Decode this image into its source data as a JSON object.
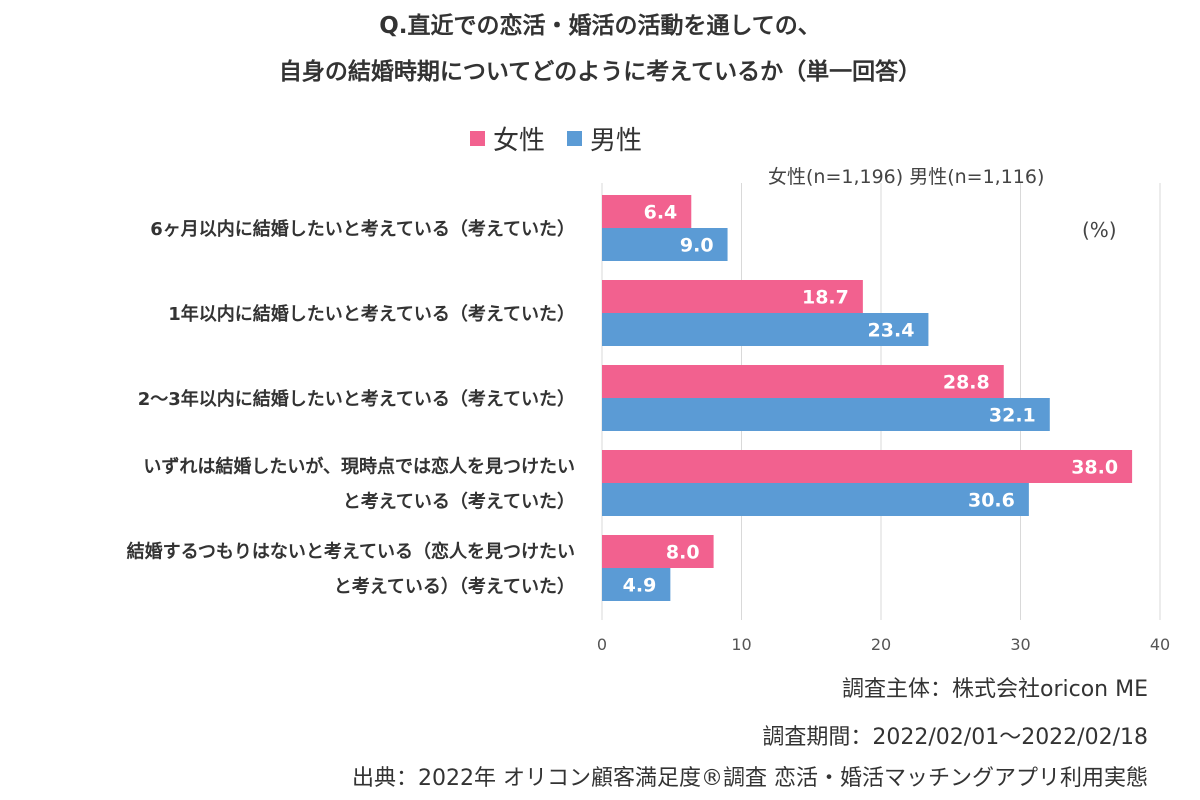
{
  "title_line1": "Q.直近での恋活・婚活の活動を通しての、",
  "title_line2": "自身の結婚時期についてどのように考えているか（単一回答）",
  "sample_note": "女性(n=1,196) 男性(n=1,116)",
  "unit_note": "(%)",
  "footer": {
    "sponsor": "調査主体：株式会社oricon ME",
    "period": "調査期間：2022/02/01～2022/02/18",
    "source": "出典：2022年 オリコン顧客満足度®調査 恋活・婚活マッチングアプリ利用実態"
  },
  "colors": {
    "female": "#f2618f",
    "male": "#5b9bd5",
    "grid": "#d9d9d9"
  },
  "chart_data": {
    "type": "bar",
    "orientation": "horizontal",
    "categories": [
      [
        "6ヶ月以内に結婚したいと考えている（考えていた）"
      ],
      [
        "1年以内に結婚したいと考えている（考えていた）"
      ],
      [
        "2～3年以内に結婚したいと考えている（考えていた）"
      ],
      [
        "いずれは結婚したいが、現時点では恋人を見つけたい",
        "と考えている（考えていた）"
      ],
      [
        "結婚するつもりはないと考えている（恋人を見つけたい",
        "と考えている）（考えていた）"
      ]
    ],
    "series": [
      {
        "name": "女性",
        "values": [
          6.4,
          18.7,
          28.8,
          38.0,
          8.0
        ]
      },
      {
        "name": "男性",
        "values": [
          9.0,
          23.4,
          32.1,
          30.6,
          4.9
        ]
      }
    ],
    "xlim": [
      0,
      40
    ],
    "xticks": [
      0,
      10,
      20,
      30,
      40
    ],
    "grid": true,
    "legend_position": "top"
  }
}
